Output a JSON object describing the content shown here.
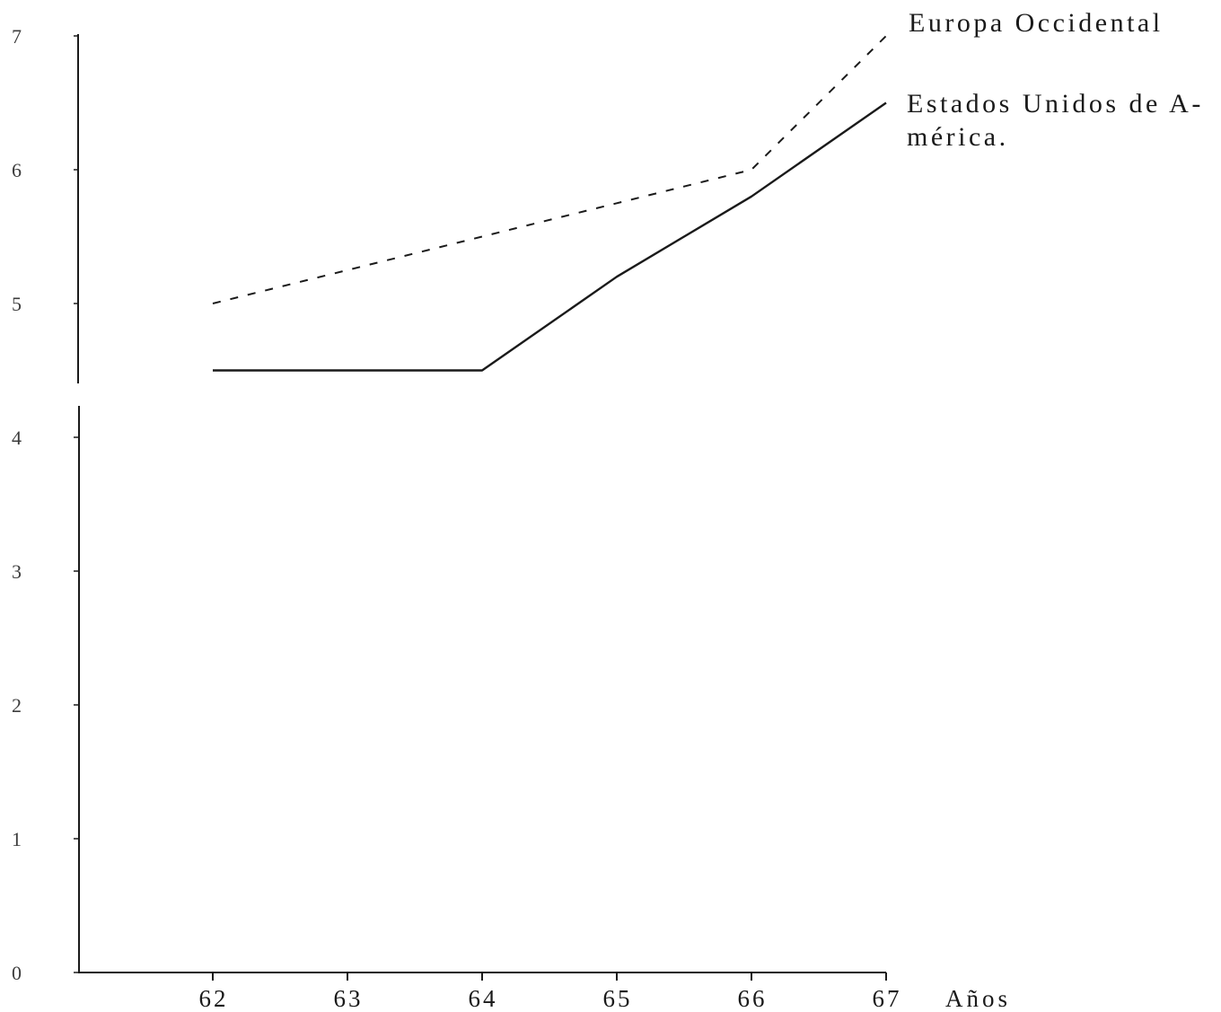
{
  "chart_data": {
    "type": "line",
    "x": [
      62,
      63,
      64,
      65,
      66,
      67
    ],
    "x_tick_labels": [
      "62",
      "63",
      "64",
      "65",
      "66",
      "67"
    ],
    "y_tick_labels": [
      "0",
      "1",
      "2",
      "3",
      "4",
      "5",
      "6",
      "7"
    ],
    "xlabel": "Años",
    "xlim": [
      61,
      67
    ],
    "ylim": [
      0,
      7
    ],
    "grid": false,
    "legend": "right",
    "series": [
      {
        "name_lines": [
          "Europa Occidental"
        ],
        "dashed": true,
        "color": "#1a1a1a",
        "values": [
          5.0,
          5.25,
          5.5,
          5.75,
          6.0,
          7.0
        ]
      },
      {
        "name_lines": [
          "Estados Unidos de A-",
          "mérica."
        ],
        "dashed": false,
        "color": "#1a1a1a",
        "values": [
          4.5,
          4.5,
          4.5,
          5.2,
          5.8,
          6.5
        ]
      }
    ]
  },
  "colors": {
    "background": "#ffffff",
    "ink": "#1a1a1a"
  }
}
